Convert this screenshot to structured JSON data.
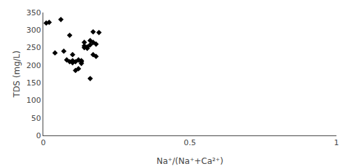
{
  "chart_data": {
    "type": "scatter",
    "x": [
      0.02,
      0.04,
      0.06,
      0.07,
      0.08,
      0.09,
      0.09,
      0.1,
      0.1,
      0.1,
      0.11,
      0.11,
      0.12,
      0.12,
      0.13,
      0.13,
      0.13,
      0.14,
      0.14,
      0.14,
      0.15,
      0.15,
      0.16,
      0.16,
      0.17,
      0.17,
      0.17,
      0.18,
      0.18,
      0.19,
      0.01,
      0.16
    ],
    "values": [
      322,
      235,
      330,
      240,
      215,
      210,
      285,
      213,
      230,
      207,
      210,
      185,
      215,
      190,
      210,
      205,
      213,
      250,
      255,
      265,
      248,
      252,
      270,
      258,
      295,
      265,
      230,
      225,
      260,
      293,
      320,
      162
    ],
    "color": "black",
    "marker": "diamond",
    "xlabel": "Na⁺/(Na⁺+Ca²⁺)",
    "ylabel": "TDS (mg/L)",
    "xlim": [
      0,
      1
    ],
    "ylim": [
      0,
      350
    ],
    "xticks": [
      0,
      0.5,
      1
    ],
    "yticks": [
      0,
      50,
      100,
      150,
      200,
      250,
      300,
      350
    ],
    "grid": false
  }
}
